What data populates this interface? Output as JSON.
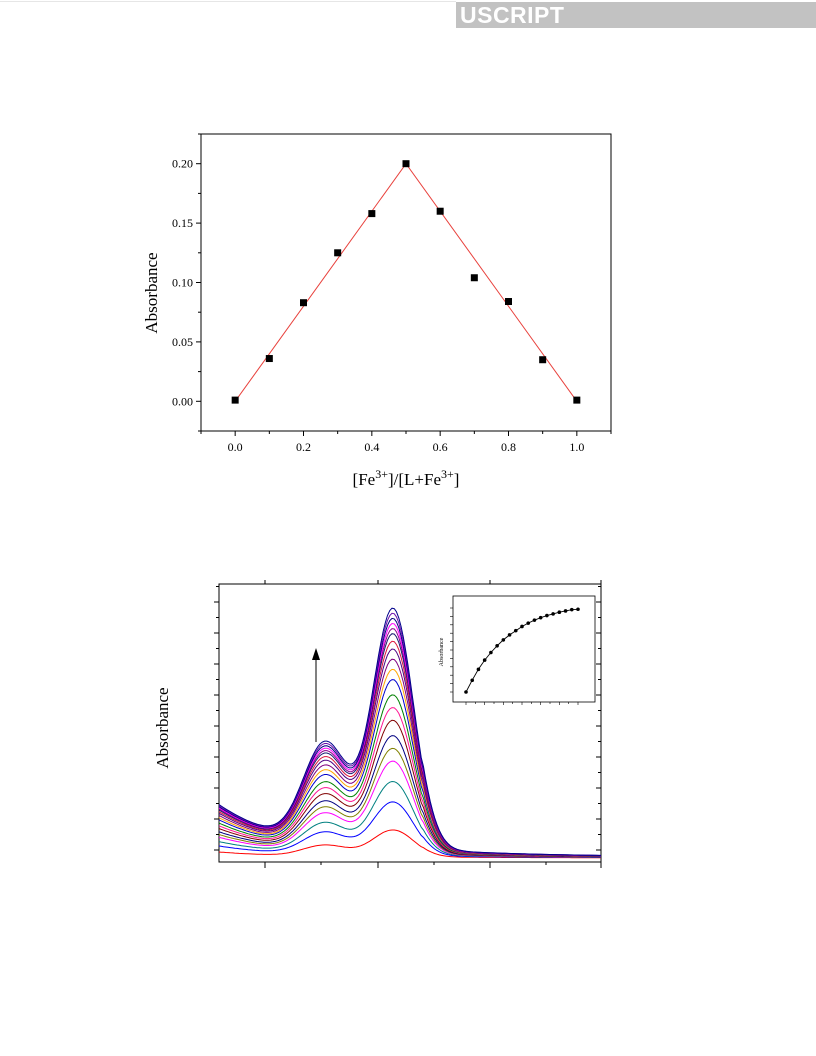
{
  "header": {
    "banner_text": "USCRIPT"
  },
  "chart_data": [
    {
      "type": "scatter",
      "title": "",
      "xlabel": "[Fe3+]/[L+Fe3+]",
      "xlabel_parts": [
        "[Fe",
        "3+",
        "]/[L+Fe",
        "3+",
        "]"
      ],
      "ylabel": "Absorbance",
      "xlim": [
        -0.1,
        1.1
      ],
      "ylim": [
        -0.025,
        0.225
      ],
      "xticks": [
        "0.0",
        "0.2",
        "0.4",
        "0.6",
        "0.8",
        "1.0"
      ],
      "yticks": [
        "0.00",
        "0.05",
        "0.10",
        "0.15",
        "0.20"
      ],
      "x": [
        0.0,
        0.1,
        0.2,
        0.3,
        0.4,
        0.5,
        0.6,
        0.7,
        0.8,
        0.9,
        1.0
      ],
      "y": [
        0.001,
        0.036,
        0.083,
        0.125,
        0.158,
        0.2,
        0.16,
        0.104,
        0.084,
        0.035,
        0.001
      ],
      "fit_line": {
        "x": [
          0.0,
          0.5,
          1.0
        ],
        "y": [
          0.0,
          0.2,
          0.0
        ],
        "color": "#e8413c"
      },
      "marker_color": "#000000",
      "grid": false
    },
    {
      "type": "line",
      "title": "",
      "ylabel": "Absorbance",
      "xlabel": "",
      "x_range": [
        300,
        640
      ],
      "peak_x": 455,
      "shoulder_x": 395,
      "peak_values": [
        0.11,
        0.22,
        0.3,
        0.38,
        0.43,
        0.48,
        0.54,
        0.59,
        0.64,
        0.7,
        0.74,
        0.78,
        0.82,
        0.85,
        0.88,
        0.9,
        0.92,
        0.94,
        0.96,
        0.98
      ],
      "series_colors": [
        "#ff0000",
        "#0000ff",
        "#008080",
        "#ff00ff",
        "#808000",
        "#000080",
        "#800000",
        "#ff1493",
        "#008000",
        "#0000cd",
        "#ffa500",
        "#800080",
        "#4b0082",
        "#dc143c",
        "#191970",
        "#8b008b",
        "#ff00ff",
        "#000080",
        "#6a0dad",
        "#00008b"
      ],
      "arrow": "up",
      "inset": {
        "type": "line",
        "ylabel": "Absorbance",
        "x": [
          0,
          1,
          2,
          3,
          4,
          5,
          6,
          7,
          8,
          9,
          10,
          11,
          12,
          13,
          14,
          15,
          16,
          17,
          18
        ],
        "y": [
          0.0,
          0.14,
          0.27,
          0.38,
          0.47,
          0.55,
          0.62,
          0.68,
          0.73,
          0.78,
          0.82,
          0.855,
          0.885,
          0.91,
          0.93,
          0.95,
          0.965,
          0.98,
          0.985
        ]
      }
    }
  ]
}
